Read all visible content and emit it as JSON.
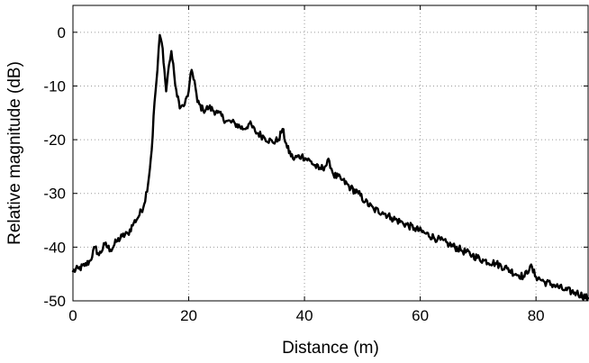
{
  "chart_data": {
    "type": "line",
    "title": "",
    "xlabel": "Distance (m)",
    "ylabel": "Relative magnitude (dB)",
    "xlim": [
      0,
      89
    ],
    "ylim": [
      -50,
      5
    ],
    "x_ticks": [
      0,
      20,
      40,
      60,
      80
    ],
    "y_ticks": [
      0,
      -10,
      -20,
      -30,
      -40,
      -50
    ],
    "x_tick_labels": [
      "0",
      "20",
      "40",
      "60",
      "80"
    ],
    "y_tick_labels": [
      "0",
      "-10",
      "-20",
      "-30",
      "-40",
      "-50"
    ],
    "grid": true,
    "legend": "none",
    "series": [
      {
        "color": "#000000",
        "points": [
          [
            0,
            -44.5
          ],
          [
            1,
            -44
          ],
          [
            2,
            -43.5
          ],
          [
            3,
            -42.5
          ],
          [
            3.8,
            -40
          ],
          [
            4.5,
            -41.5
          ],
          [
            5.5,
            -39.5
          ],
          [
            6.5,
            -40.5
          ],
          [
            7.5,
            -39
          ],
          [
            8.5,
            -38
          ],
          [
            9.5,
            -37.5
          ],
          [
            10.5,
            -35.5
          ],
          [
            11.5,
            -34
          ],
          [
            12.3,
            -32
          ],
          [
            13,
            -28
          ],
          [
            13.6,
            -22
          ],
          [
            14.1,
            -13
          ],
          [
            14.6,
            -7
          ],
          [
            15,
            -0.5
          ],
          [
            15.5,
            -3
          ],
          [
            16.1,
            -11
          ],
          [
            16.6,
            -6
          ],
          [
            17,
            -3.5
          ],
          [
            17.5,
            -8
          ],
          [
            18,
            -12
          ],
          [
            18.6,
            -14
          ],
          [
            19.3,
            -13.5
          ],
          [
            20,
            -11
          ],
          [
            20.5,
            -7
          ],
          [
            21,
            -9
          ],
          [
            21.5,
            -13
          ],
          [
            22.5,
            -14.5
          ],
          [
            23.5,
            -14
          ],
          [
            25,
            -15
          ],
          [
            26.5,
            -16.5
          ],
          [
            28,
            -17
          ],
          [
            29.5,
            -18
          ],
          [
            30.5,
            -17
          ],
          [
            31.5,
            -18.5
          ],
          [
            33,
            -19.5
          ],
          [
            34.5,
            -20.5
          ],
          [
            35.5,
            -20
          ],
          [
            36.2,
            -18
          ],
          [
            37,
            -21.5
          ],
          [
            38,
            -23.5
          ],
          [
            39.5,
            -23
          ],
          [
            41,
            -24
          ],
          [
            42.5,
            -25.5
          ],
          [
            43.5,
            -25
          ],
          [
            44.3,
            -24
          ],
          [
            45,
            -26.5
          ],
          [
            46.5,
            -27.5
          ],
          [
            48,
            -29
          ],
          [
            49.3,
            -30
          ],
          [
            50.5,
            -31.5
          ],
          [
            52,
            -33
          ],
          [
            53.5,
            -33.5
          ],
          [
            55,
            -34.5
          ],
          [
            57,
            -35.5
          ],
          [
            59,
            -36.5
          ],
          [
            61,
            -37.5
          ],
          [
            63,
            -38.5
          ],
          [
            65,
            -39.5
          ],
          [
            67,
            -40.5
          ],
          [
            69,
            -41.5
          ],
          [
            71,
            -42.5
          ],
          [
            73,
            -43
          ],
          [
            75,
            -44
          ],
          [
            76.5,
            -45
          ],
          [
            78,
            -45.5
          ],
          [
            79,
            -43.5
          ],
          [
            80,
            -45.5
          ],
          [
            81.5,
            -46.5
          ],
          [
            83,
            -47
          ],
          [
            85,
            -48
          ],
          [
            87,
            -48.5
          ],
          [
            89,
            -49.5
          ]
        ]
      }
    ]
  }
}
